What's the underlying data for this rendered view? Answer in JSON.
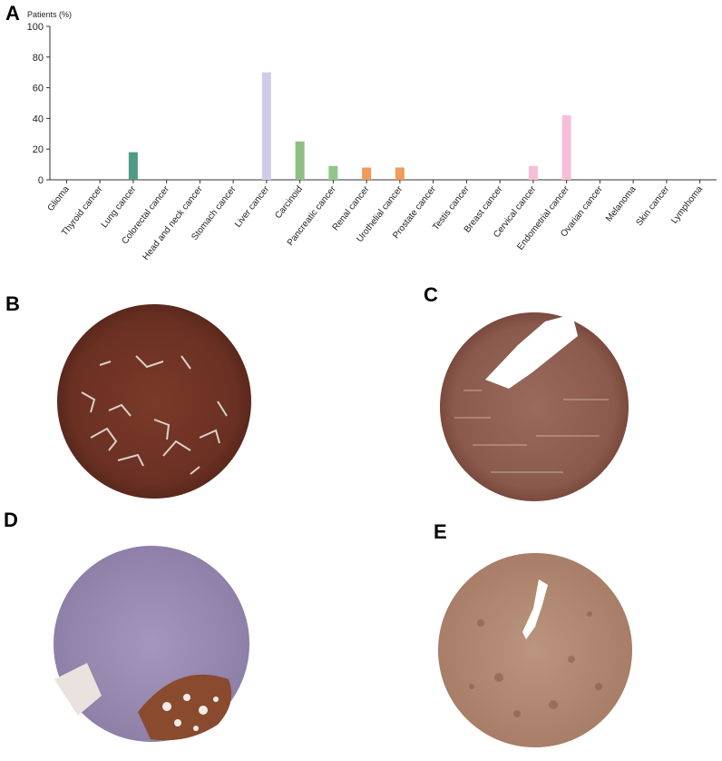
{
  "panels": {
    "a": "A",
    "b": "B",
    "c": "C",
    "d": "D",
    "e": "E"
  },
  "chart_data": {
    "type": "bar",
    "ylabel": "Patients (%)",
    "ylim": [
      0,
      100
    ],
    "yticks": [
      "0",
      "20",
      "40",
      "60",
      "80",
      "100"
    ],
    "grid": false,
    "categories": [
      "Glioma",
      "Thyroid cancer",
      "Lung cancer",
      "Colorectal cancer",
      "Head and neck cancer",
      "Stomach cancer",
      "Liver cancer",
      "Carcinoid",
      "Pancreatic cancer",
      "Renal cancer",
      "Urothelial cancer",
      "Prostate cancer",
      "Testis cancer",
      "Breast cancer",
      "Cervical cancer",
      "Endometrial cancer",
      "Ovarian cancer",
      "Melanoma",
      "Skin cancer",
      "Lymphoma"
    ],
    "values": [
      0,
      0,
      18,
      0,
      0,
      0,
      70,
      25,
      9,
      8,
      8,
      0,
      0,
      0,
      9,
      42,
      0,
      0,
      0,
      0
    ],
    "colors": [
      "#b8b8b8",
      "#b8b8b8",
      "#4e9a86",
      "#b8b8b8",
      "#b8b8b8",
      "#b8b8b8",
      "#cfcbe6",
      "#8fbe85",
      "#92c58b",
      "#f29a5a",
      "#f29a5a",
      "#b8b8b8",
      "#b8b8b8",
      "#b8b8b8",
      "#f7bed9",
      "#f7bed9",
      "#b8b8b8",
      "#b8b8b8",
      "#b8b8b8",
      "#b8b8b8"
    ]
  },
  "images": {
    "b": {
      "type": "ihc-tissue-core",
      "stain": "strong",
      "color": "#6a3022"
    },
    "c": {
      "type": "ihc-tissue-core",
      "stain": "moderate",
      "color": "#8a5a4c"
    },
    "d": {
      "type": "ihc-tissue-core",
      "stain": "mixed",
      "color": "#9b8bb0",
      "accent": "#8a4a2e"
    },
    "e": {
      "type": "ihc-tissue-core",
      "stain": "moderate",
      "color": "#b48a74"
    }
  }
}
